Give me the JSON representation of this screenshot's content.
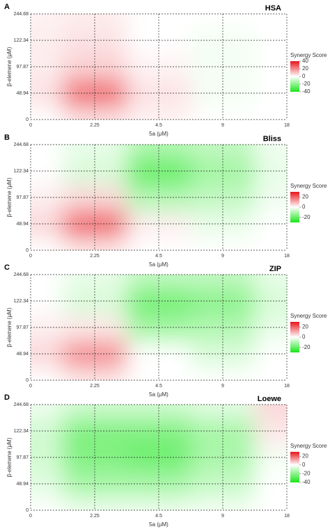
{
  "chart_data": [
    {
      "type": "heatmap",
      "panel": "A",
      "title": "HSA",
      "xlabel": "5a (μM)",
      "ylabel": "β-elemene (μM)",
      "x": [
        0,
        2.25,
        4.5,
        9,
        18
      ],
      "y": [
        0,
        48.94,
        97.87,
        122.34,
        244.68
      ],
      "z": [
        [
          0,
          5,
          2,
          0,
          0
        ],
        [
          5,
          25,
          5,
          -2,
          0
        ],
        [
          3,
          8,
          2,
          -2,
          0
        ],
        [
          3,
          5,
          0,
          -2,
          0
        ],
        [
          2,
          3,
          0,
          0,
          0
        ]
      ],
      "legend_title": "Synergy Score",
      "zlim": [
        -40,
        40
      ],
      "zticks": [
        40,
        20,
        0,
        -20,
        -40
      ],
      "colors": {
        "positive": "#e8141c",
        "negative": "#19e619"
      }
    },
    {
      "type": "heatmap",
      "panel": "B",
      "title": "Bliss",
      "xlabel": "5a (μM)",
      "ylabel": "β-elemene (μM)",
      "x": [
        0,
        2.25,
        4.5,
        9,
        18
      ],
      "y": [
        0,
        48.94,
        97.87,
        122.34,
        244.68
      ],
      "z": [
        [
          0,
          3,
          0,
          0,
          0
        ],
        [
          5,
          20,
          2,
          -3,
          0
        ],
        [
          2,
          5,
          -10,
          -8,
          -2
        ],
        [
          0,
          -5,
          -20,
          -12,
          -3
        ],
        [
          0,
          -3,
          -10,
          -8,
          -2
        ]
      ],
      "legend_title": "Synergy Score",
      "zlim": [
        -30,
        30
      ],
      "zticks": [
        20,
        0,
        -20
      ],
      "colors": {
        "positive": "#e8141c",
        "negative": "#19e619"
      }
    },
    {
      "type": "heatmap",
      "panel": "C",
      "title": "ZIP",
      "xlabel": "5a (μM)",
      "ylabel": "β-elemene (μM)",
      "x": [
        0,
        2.25,
        4.5,
        9,
        18
      ],
      "y": [
        0,
        48.94,
        97.87,
        122.34,
        244.68
      ],
      "z": [
        [
          0,
          3,
          0,
          0,
          0
        ],
        [
          5,
          15,
          0,
          -5,
          0
        ],
        [
          2,
          3,
          -12,
          -10,
          -3
        ],
        [
          0,
          -5,
          -18,
          -15,
          -5
        ],
        [
          0,
          -3,
          -8,
          -8,
          -3
        ]
      ],
      "legend_title": "Synergy Score",
      "zlim": [
        -30,
        30
      ],
      "zticks": [
        20,
        0,
        -20
      ],
      "colors": {
        "positive": "#e8141c",
        "negative": "#19e619"
      }
    },
    {
      "type": "heatmap",
      "panel": "D",
      "title": "Loewe",
      "xlabel": "5a (μM)",
      "ylabel": "β-elemene (μM)",
      "x": [
        0,
        2.25,
        4.5,
        9,
        18
      ],
      "y": [
        0,
        48.94,
        97.87,
        122.34,
        244.68
      ],
      "z": [
        [
          0,
          -3,
          -3,
          -2,
          0
        ],
        [
          -5,
          -15,
          -15,
          -10,
          0
        ],
        [
          -8,
          -22,
          -25,
          -15,
          -2
        ],
        [
          -8,
          -22,
          -22,
          -15,
          3
        ],
        [
          -3,
          -8,
          -8,
          -5,
          5
        ]
      ],
      "legend_title": "Synergy Score",
      "zlim": [
        -40,
        30
      ],
      "zticks": [
        20,
        0,
        -20,
        -40
      ],
      "colors": {
        "positive": "#e8141c",
        "negative": "#19e619"
      }
    }
  ]
}
